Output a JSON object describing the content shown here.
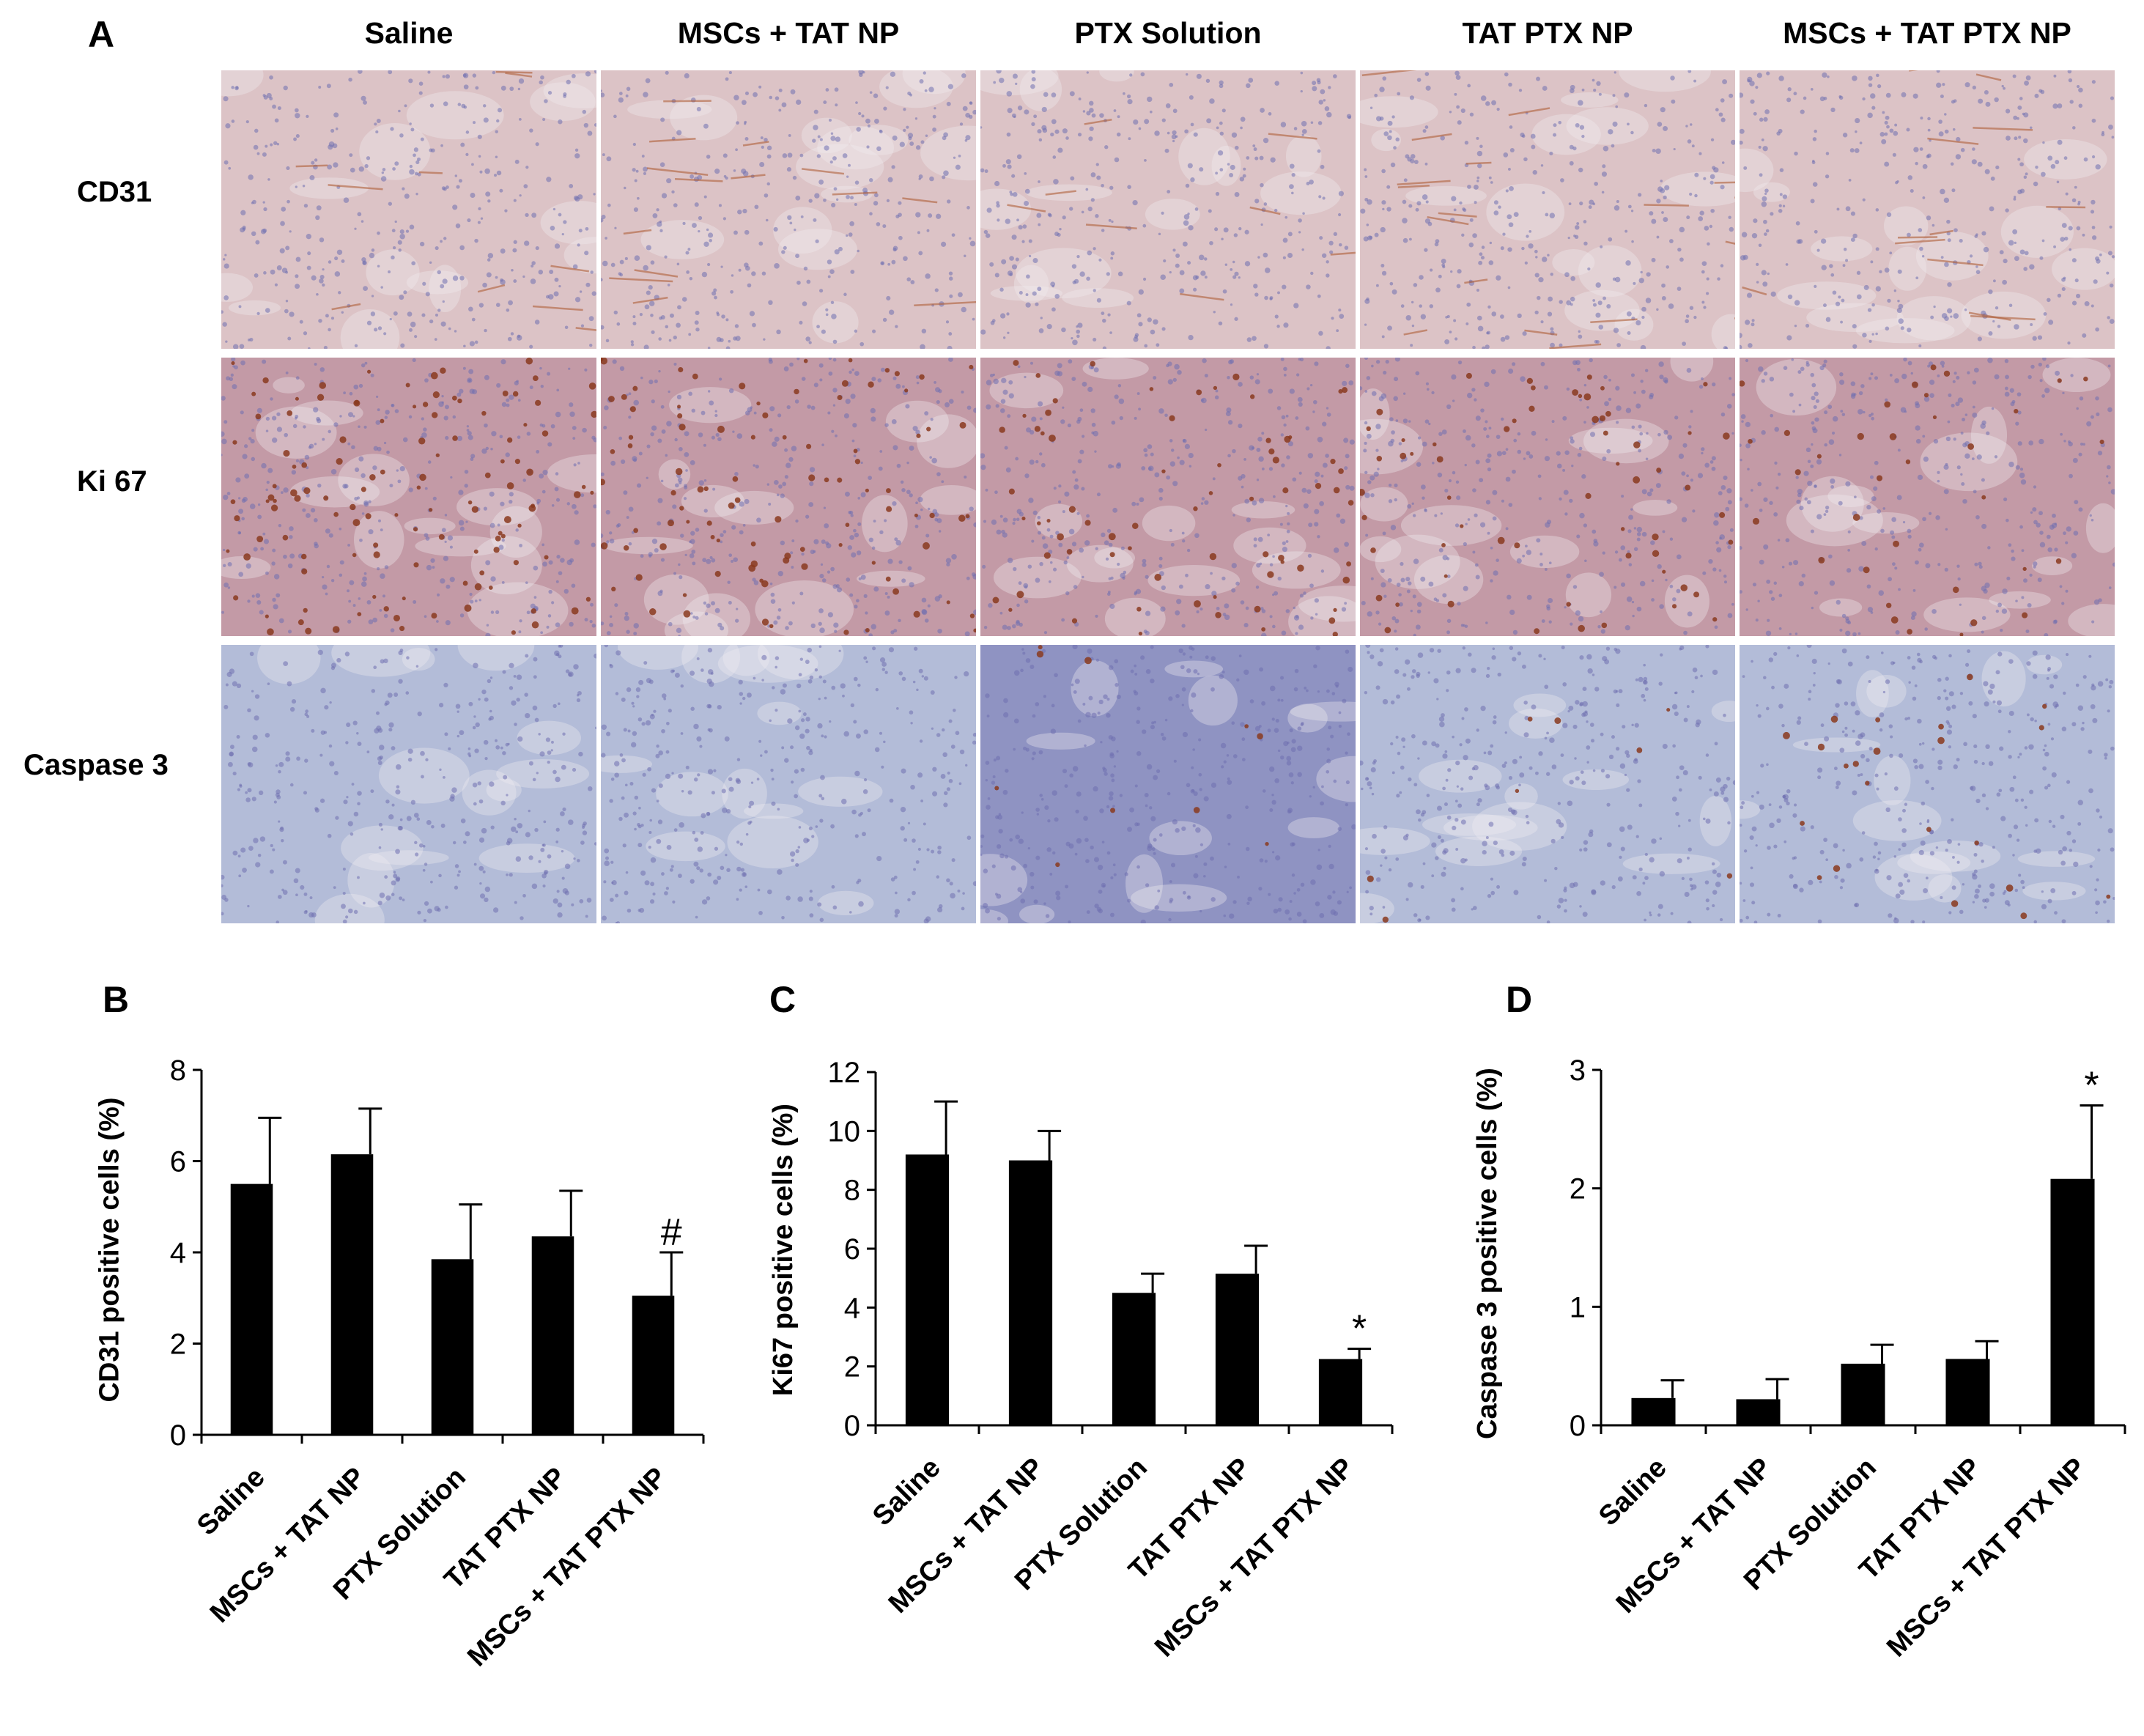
{
  "panel_a": {
    "label": "A",
    "columns": [
      "Saline",
      "MSCs + TAT NP",
      "PTX Solution",
      "TAT PTX NP",
      "MSCs + TAT PTX NP"
    ],
    "rows": [
      "CD31",
      "Ki 67",
      "Caspase 3"
    ],
    "stain_colors": {
      "CD31": "#dcc3c6",
      "Ki 67": "#c39aa6",
      "Caspase 3": "#b3bcd8",
      "positive_signal": "#8a3a1e",
      "nuclei": "#6f6fb0"
    }
  },
  "chart_data": [
    {
      "panel": "B",
      "type": "bar",
      "categories": [
        "Saline",
        "MSCs + TAT NP",
        "PTX Solution",
        "TAT PTX NP",
        "MSCs + TAT PTX NP"
      ],
      "values": [
        5.5,
        6.15,
        3.85,
        4.35,
        3.05
      ],
      "errors": [
        1.45,
        1.0,
        1.2,
        1.0,
        0.95
      ],
      "annotations": [
        "",
        "",
        "",
        "",
        "#"
      ],
      "ylabel": "CD31 positive cells (%)",
      "ylim": [
        0,
        8
      ],
      "yticks": [
        0,
        2,
        4,
        6,
        8
      ],
      "bar_color": "#000000",
      "grid": false
    },
    {
      "panel": "C",
      "type": "bar",
      "categories": [
        "Saline",
        "MSCs + TAT NP",
        "PTX Solution",
        "TAT PTX NP",
        "MSCs + TAT PTX NP"
      ],
      "values": [
        9.2,
        9.0,
        4.5,
        5.15,
        2.25
      ],
      "errors": [
        1.8,
        1.0,
        0.65,
        0.95,
        0.35
      ],
      "annotations": [
        "",
        "",
        "",
        "",
        "*"
      ],
      "ylabel": "Ki67 positive cells (%)",
      "ylim": [
        0,
        12
      ],
      "yticks": [
        0,
        2,
        4,
        6,
        8,
        10,
        12
      ],
      "bar_color": "#000000",
      "grid": false
    },
    {
      "panel": "D",
      "type": "bar",
      "categories": [
        "Saline",
        "MSCs + TAT NP",
        "PTX Solution",
        "TAT PTX NP",
        "MSCs + TAT PTX NP"
      ],
      "values": [
        0.23,
        0.22,
        0.52,
        0.56,
        2.08
      ],
      "errors": [
        0.15,
        0.17,
        0.16,
        0.15,
        0.62
      ],
      "annotations": [
        "",
        "",
        "",
        "",
        "*"
      ],
      "ylabel": "Caspase 3 positive cells (%)",
      "ylim": [
        0,
        3
      ],
      "yticks": [
        0,
        1,
        2,
        3
      ],
      "bar_color": "#000000",
      "grid": false
    }
  ]
}
